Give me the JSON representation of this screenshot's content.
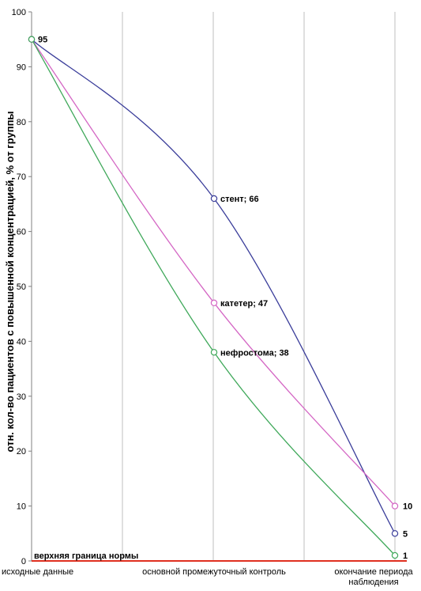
{
  "chart_data": {
    "type": "line",
    "title": "",
    "xlabel": "",
    "ylabel": "отн. кол-во пациентов с повышенной концентрацией, % от группы",
    "ylim": [
      0,
      100
    ],
    "yticks": [
      0,
      10,
      20,
      30,
      40,
      50,
      60,
      70,
      80,
      90,
      100
    ],
    "grid": true,
    "categories": [
      [
        "исходные данные"
      ],
      [
        "основной промежуточный контроль"
      ],
      [
        "окончание периода",
        "наблюдения"
      ]
    ],
    "series": [
      {
        "name": "стент",
        "values": [
          95,
          66,
          5
        ],
        "color": "#3a3d9a"
      },
      {
        "name": "катетер",
        "values": [
          95,
          47,
          10
        ],
        "color": "#d466c4"
      },
      {
        "name": "нефростома",
        "values": [
          95,
          38,
          1
        ],
        "color": "#3fa85a"
      }
    ],
    "point_labels": [
      {
        "series": 0,
        "index": 0,
        "text": "95"
      },
      {
        "series": 0,
        "index": 1,
        "text": "стент; 66"
      },
      {
        "series": 1,
        "index": 1,
        "text": "катетер; 47"
      },
      {
        "series": 2,
        "index": 1,
        "text": "нефростома; 38"
      },
      {
        "series": 1,
        "index": 2,
        "text": "10"
      },
      {
        "series": 0,
        "index": 2,
        "text": "5"
      },
      {
        "series": 2,
        "index": 2,
        "text": "1"
      }
    ],
    "reference_line": {
      "label": "верхняя граница нормы",
      "value": 0,
      "color": "#e03020"
    }
  }
}
